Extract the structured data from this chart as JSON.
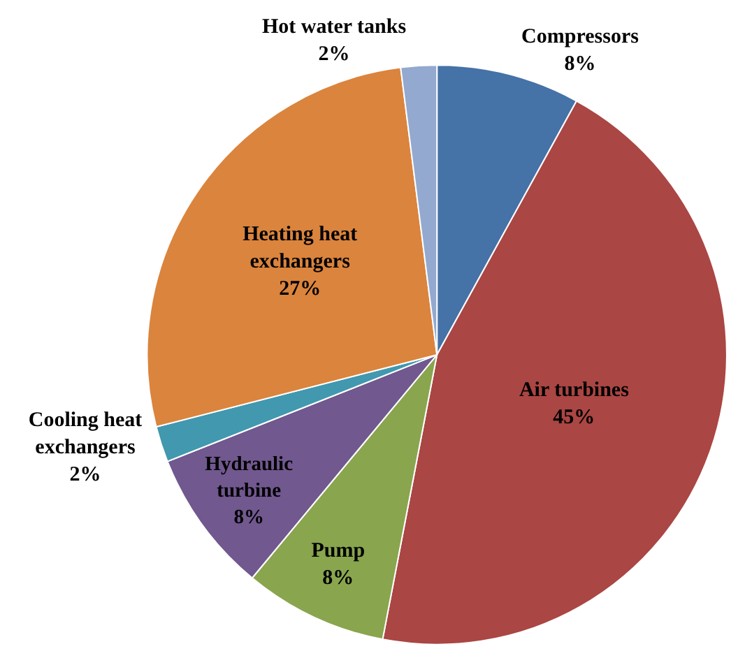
{
  "chart_data": {
    "type": "pie",
    "categories": [
      "Compressors",
      "Air turbines",
      "Pump",
      "Hydraulic turbine",
      "Cooling heat exchangers",
      "Heating heat exchangers",
      "Hot water tanks"
    ],
    "values": [
      8,
      45,
      8,
      8,
      2,
      27,
      2
    ],
    "colors": [
      "#4572a7",
      "#aa4643",
      "#89a54e",
      "#71588f",
      "#4198af",
      "#db843d",
      "#93a9cf"
    ],
    "value_labels": [
      "8%",
      "45%",
      "8%",
      "8%",
      "2%",
      "27%",
      "2%"
    ],
    "legend": false
  }
}
